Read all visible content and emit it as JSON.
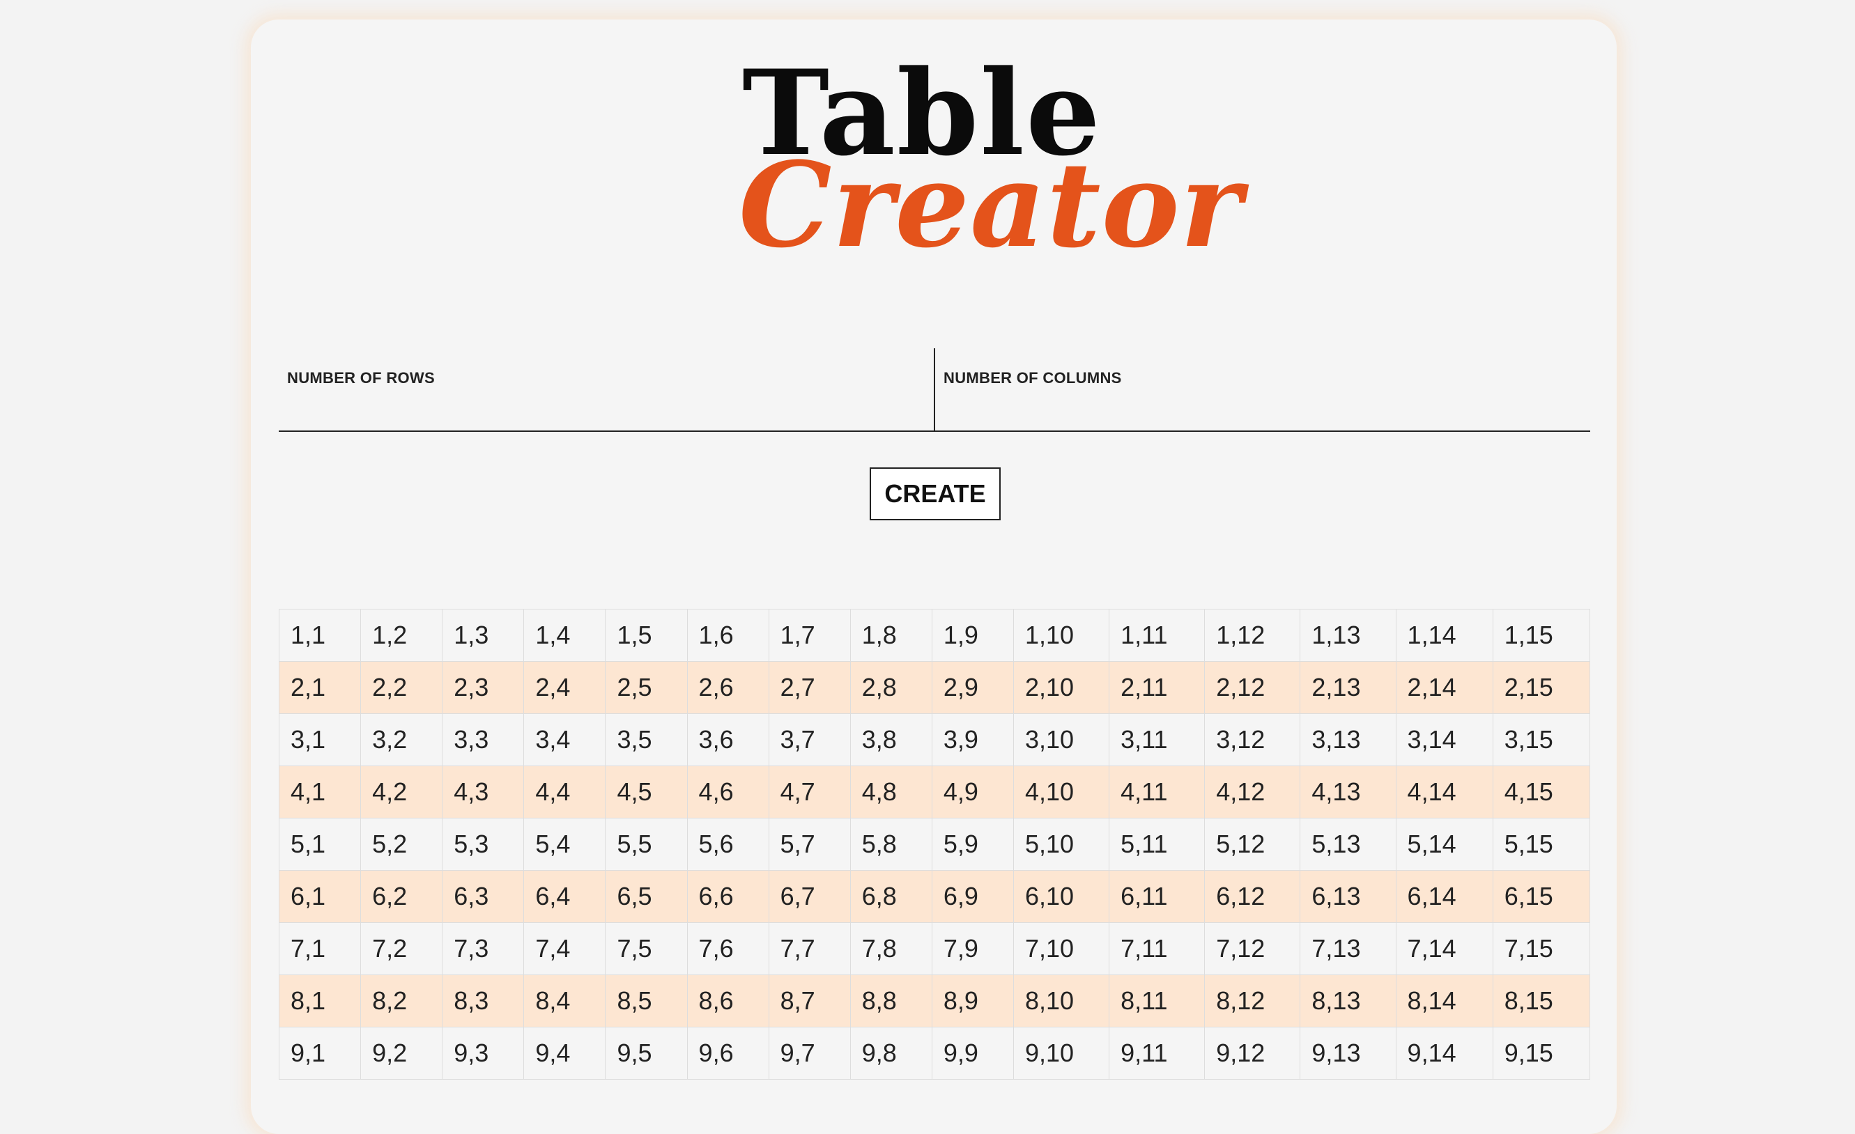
{
  "logo": {
    "line1": "Table",
    "line2": "Creator"
  },
  "form": {
    "rows_label": "NUMBER OF ROWS",
    "rows_value": "",
    "columns_label": "NUMBER OF COLUMNS",
    "columns_value": "",
    "create_label": "CREATE"
  },
  "colors": {
    "accent": "#e4531b",
    "stripe": "#fde6d2",
    "background": "#f5f5f5"
  },
  "table": {
    "rows": [
      [
        "1,1",
        "1,2",
        "1,3",
        "1,4",
        "1,5",
        "1,6",
        "1,7",
        "1,8",
        "1,9",
        "1,10",
        "1,11",
        "1,12",
        "1,13",
        "1,14",
        "1,15"
      ],
      [
        "2,1",
        "2,2",
        "2,3",
        "2,4",
        "2,5",
        "2,6",
        "2,7",
        "2,8",
        "2,9",
        "2,10",
        "2,11",
        "2,12",
        "2,13",
        "2,14",
        "2,15"
      ],
      [
        "3,1",
        "3,2",
        "3,3",
        "3,4",
        "3,5",
        "3,6",
        "3,7",
        "3,8",
        "3,9",
        "3,10",
        "3,11",
        "3,12",
        "3,13",
        "3,14",
        "3,15"
      ],
      [
        "4,1",
        "4,2",
        "4,3",
        "4,4",
        "4,5",
        "4,6",
        "4,7",
        "4,8",
        "4,9",
        "4,10",
        "4,11",
        "4,12",
        "4,13",
        "4,14",
        "4,15"
      ],
      [
        "5,1",
        "5,2",
        "5,3",
        "5,4",
        "5,5",
        "5,6",
        "5,7",
        "5,8",
        "5,9",
        "5,10",
        "5,11",
        "5,12",
        "5,13",
        "5,14",
        "5,15"
      ],
      [
        "6,1",
        "6,2",
        "6,3",
        "6,4",
        "6,5",
        "6,6",
        "6,7",
        "6,8",
        "6,9",
        "6,10",
        "6,11",
        "6,12",
        "6,13",
        "6,14",
        "6,15"
      ],
      [
        "7,1",
        "7,2",
        "7,3",
        "7,4",
        "7,5",
        "7,6",
        "7,7",
        "7,8",
        "7,9",
        "7,10",
        "7,11",
        "7,12",
        "7,13",
        "7,14",
        "7,15"
      ],
      [
        "8,1",
        "8,2",
        "8,3",
        "8,4",
        "8,5",
        "8,6",
        "8,7",
        "8,8",
        "8,9",
        "8,10",
        "8,11",
        "8,12",
        "8,13",
        "8,14",
        "8,15"
      ],
      [
        "9,1",
        "9,2",
        "9,3",
        "9,4",
        "9,5",
        "9,6",
        "9,7",
        "9,8",
        "9,9",
        "9,10",
        "9,11",
        "9,12",
        "9,13",
        "9,14",
        "9,15"
      ]
    ]
  }
}
